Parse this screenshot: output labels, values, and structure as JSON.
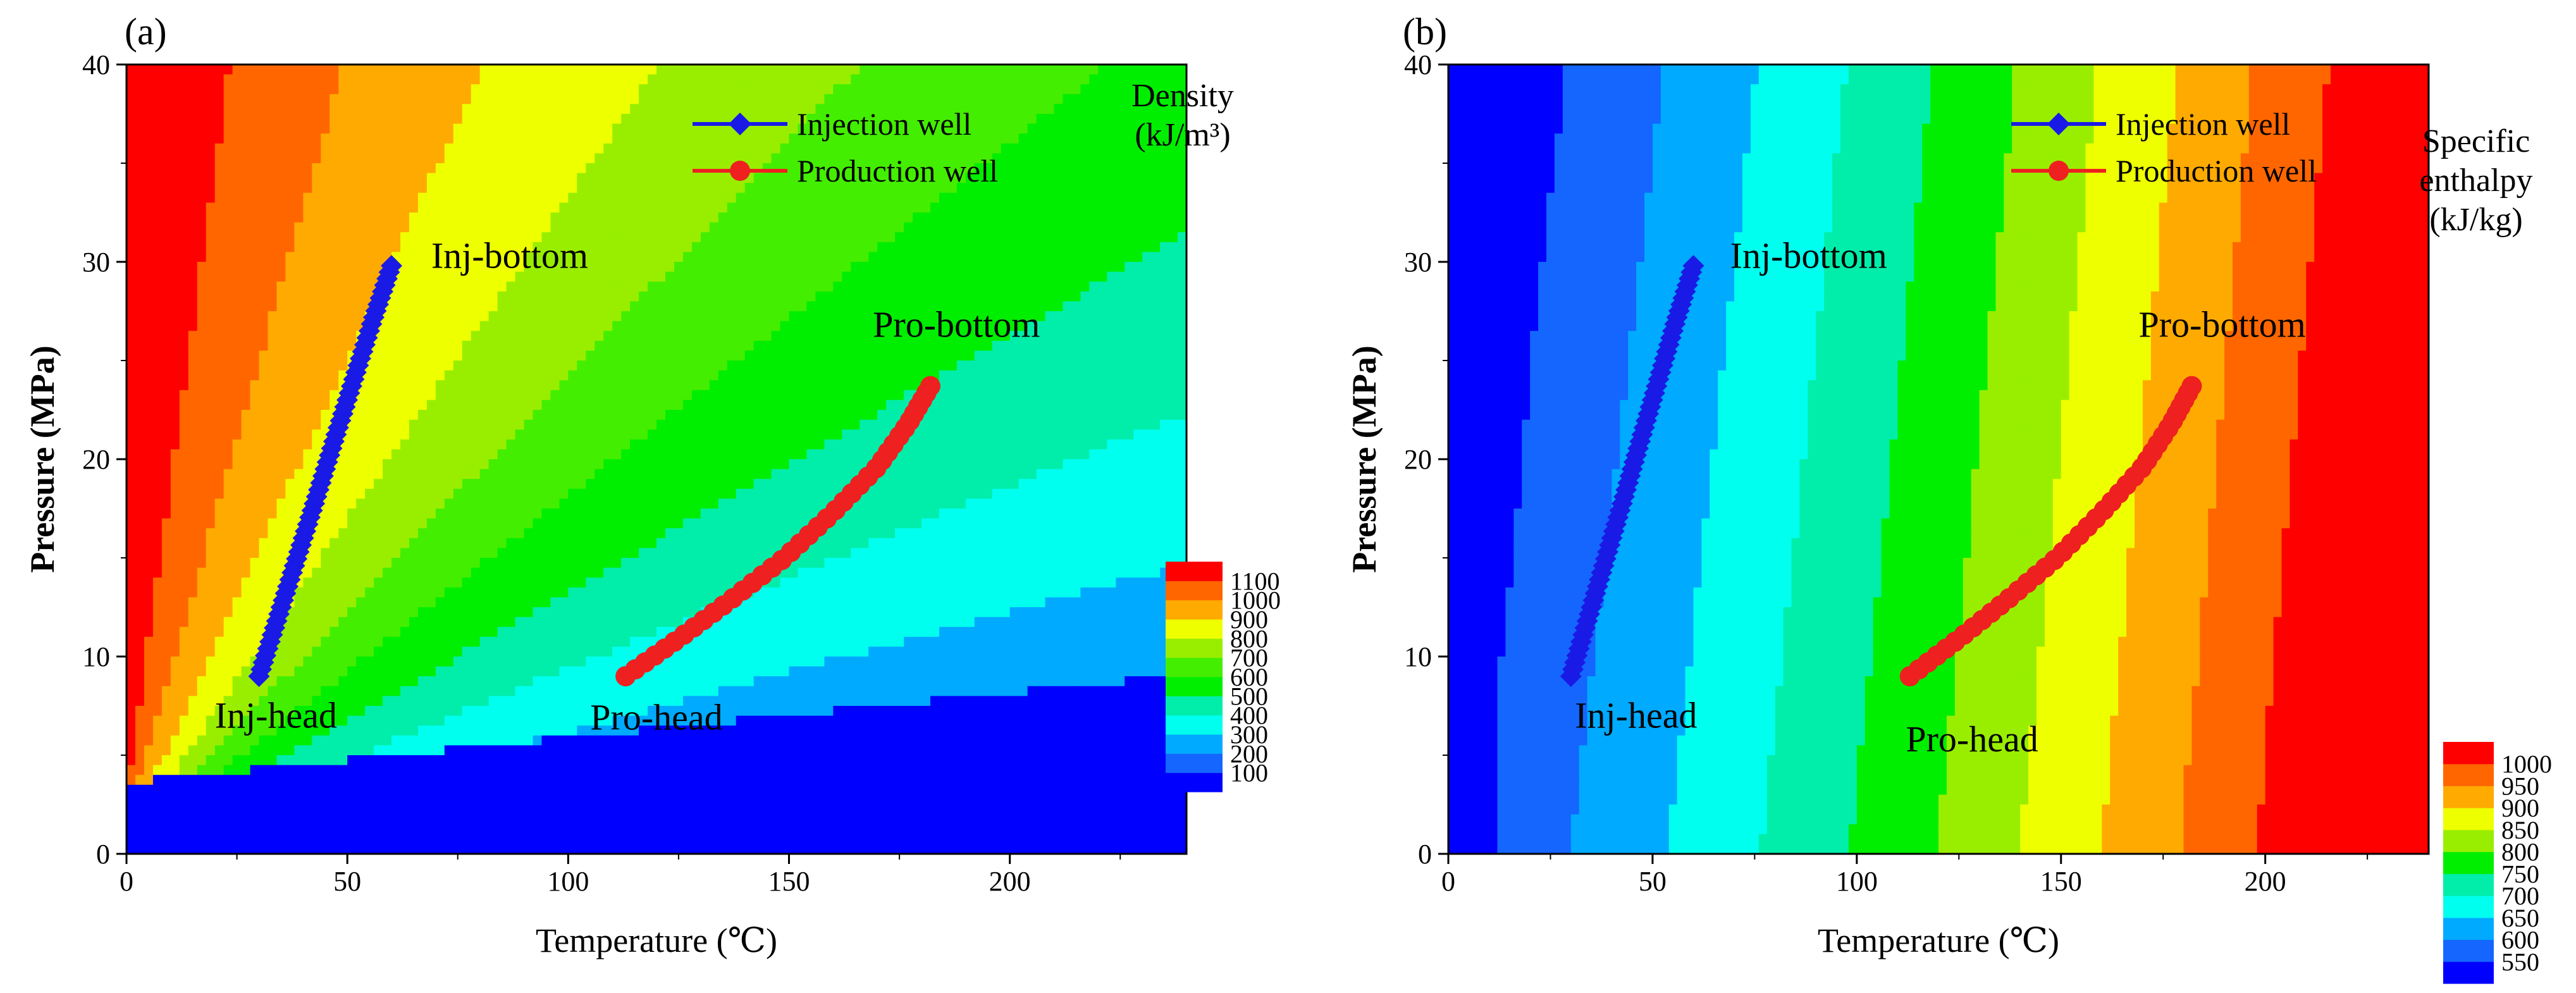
{
  "chart_data": [
    {
      "panel_label": "(a)",
      "type": "contour",
      "xlabel": "Temperature (℃)",
      "ylabel": "Pressure (MPa)",
      "xlim": [
        0,
        240
      ],
      "ylim": [
        0,
        40
      ],
      "x_ticks": [
        0,
        50,
        100,
        150,
        200
      ],
      "y_ticks": [
        0,
        10,
        20,
        30,
        40
      ],
      "field": "density",
      "colorbar": {
        "title_lines": [
          "Density",
          "(kJ/m³)"
        ],
        "levels": [
          100,
          200,
          300,
          400,
          500,
          600,
          700,
          800,
          900,
          1000,
          1100
        ],
        "colors": [
          "#0000FF",
          "#1466FF",
          "#00AAFF",
          "#00FFEE",
          "#00EEAA",
          "#00EE00",
          "#44EE00",
          "#99EE00",
          "#EEFF00",
          "#FFAA00",
          "#FF6600",
          "#FF0000"
        ]
      },
      "series": [
        {
          "name": "Injection well",
          "color": "#1a1ae6",
          "marker": "diamond",
          "x": [
            30,
            34.3,
            38.6,
            42.9,
            47.1,
            51.4,
            55.7,
            60
          ],
          "y": [
            9,
            12,
            15,
            18,
            21,
            24,
            27,
            29.8
          ]
        },
        {
          "name": "Production well",
          "color": "#ee2020",
          "marker": "circle",
          "x": [
            113,
            125,
            137,
            149,
            160,
            170,
            177,
            182
          ],
          "y": [
            9,
            10.9,
            12.9,
            15,
            17.3,
            19.6,
            21.8,
            23.7
          ]
        }
      ],
      "annotations": [
        {
          "text": "Inj-bottom",
          "x": 69,
          "y": 29.7
        },
        {
          "text": "Inj-head",
          "x": 20,
          "y": 6.4
        },
        {
          "text": "Pro-bottom",
          "x": 169,
          "y": 26.2
        },
        {
          "text": "Pro-head",
          "x": 105,
          "y": 6.3
        }
      ],
      "legend_position": "top-right"
    },
    {
      "panel_label": "(b)",
      "type": "contour",
      "xlabel": "Temperature (℃)",
      "ylabel": "Pressure (MPa)",
      "xlim": [
        0,
        240
      ],
      "ylim": [
        0,
        40
      ],
      "x_ticks": [
        0,
        50,
        100,
        150,
        200
      ],
      "y_ticks": [
        0,
        10,
        20,
        30,
        40
      ],
      "field": "specific_enthalpy",
      "colorbar": {
        "title_lines": [
          "Specific",
          "enthalpy",
          "(kJ/kg)"
        ],
        "levels": [
          550,
          600,
          650,
          700,
          750,
          800,
          850,
          900,
          950,
          1000
        ],
        "colors": [
          "#0000FF",
          "#1466FF",
          "#00AAFF",
          "#00FFEE",
          "#00EEAA",
          "#00EE00",
          "#99EE00",
          "#EEFF00",
          "#FFAA00",
          "#FF6600",
          "#FF0000"
        ]
      },
      "series": [
        {
          "name": "Injection well",
          "color": "#1a1ae6",
          "marker": "diamond",
          "x": [
            30,
            34.3,
            38.6,
            42.9,
            47.1,
            51.4,
            55.7,
            60
          ],
          "y": [
            9,
            12,
            15,
            18,
            21,
            24,
            27,
            29.8
          ]
        },
        {
          "name": "Production well",
          "color": "#ee2020",
          "marker": "circle",
          "x": [
            113,
            125,
            137,
            149,
            160,
            170,
            177,
            182
          ],
          "y": [
            9,
            10.9,
            12.9,
            15,
            17.3,
            19.6,
            21.8,
            23.7
          ]
        }
      ],
      "annotations": [
        {
          "text": "Inj-bottom",
          "x": 69,
          "y": 29.7
        },
        {
          "text": "Inj-head",
          "x": 31,
          "y": 6.4
        },
        {
          "text": "Pro-bottom",
          "x": 169,
          "y": 26.2
        },
        {
          "text": "Pro-head",
          "x": 112,
          "y": 5.2
        }
      ],
      "legend_position": "top-right"
    }
  ]
}
